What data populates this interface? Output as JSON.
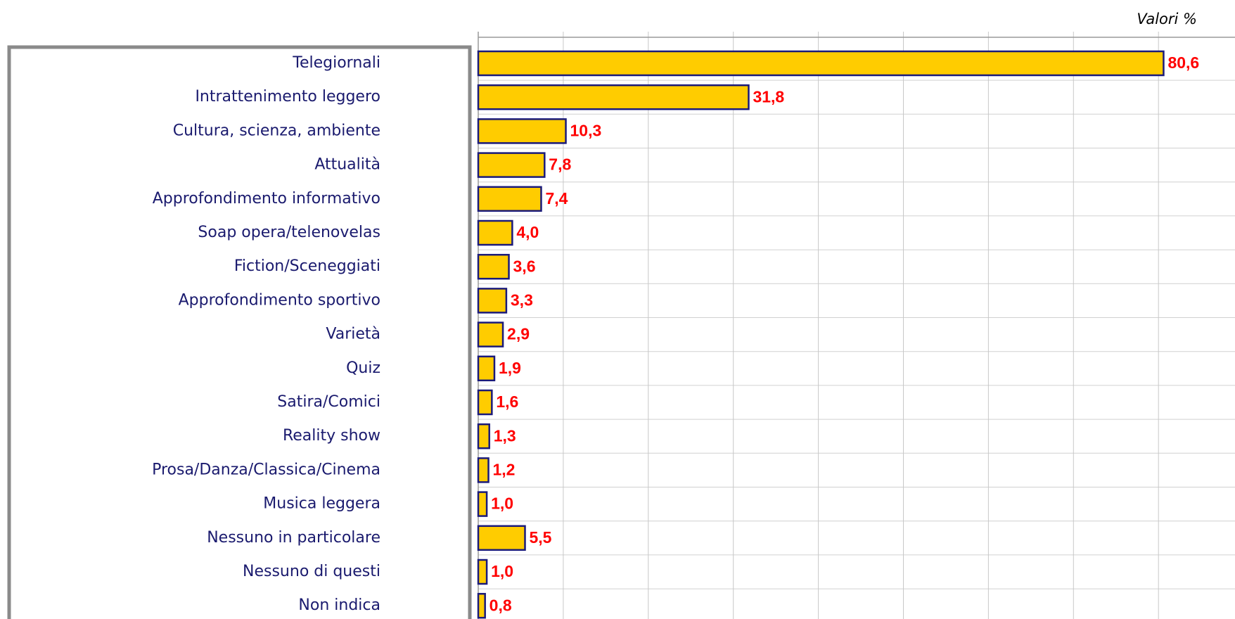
{
  "chart_data": {
    "type": "barh",
    "annotation": "Valori  %",
    "categories": [
      "Telegiornali",
      "Intrattenimento leggero",
      "Cultura, scienza, ambiente",
      "Attualità",
      "Approfondimento informativo",
      "Soap opera/telenovelas",
      "Fiction/Sceneggiati",
      "Approfondimento sportivo",
      "Varietà",
      "Quiz",
      "Satira/Comici",
      "Reality show",
      "Prosa/Danza/Classica/Cinema",
      "Musica leggera",
      "Nessuno in particolare",
      "Nessuno di questi",
      "Non indica"
    ],
    "values": [
      80.6,
      31.8,
      10.3,
      7.8,
      7.4,
      4.0,
      3.6,
      3.3,
      2.9,
      1.9,
      1.6,
      1.3,
      1.2,
      1.0,
      5.5,
      1.0,
      0.8
    ],
    "value_labels": [
      "80,6",
      "31,8",
      "10,3",
      "7,8",
      "7,4",
      "4,0",
      "3,6",
      "3,3",
      "2,9",
      "1,9",
      "1,6",
      "1,3",
      "1,2",
      "1,0",
      "5,5",
      "1,0",
      "0,8"
    ],
    "color": "#ffcc00",
    "edge_color": "#1a1a7a",
    "label_color": "#ff0000",
    "category_color": "#1a1a6e",
    "xlim": [
      0,
      89
    ],
    "xticks": [
      0,
      10,
      20,
      30,
      40,
      50,
      60,
      70,
      80
    ],
    "grid": true
  }
}
